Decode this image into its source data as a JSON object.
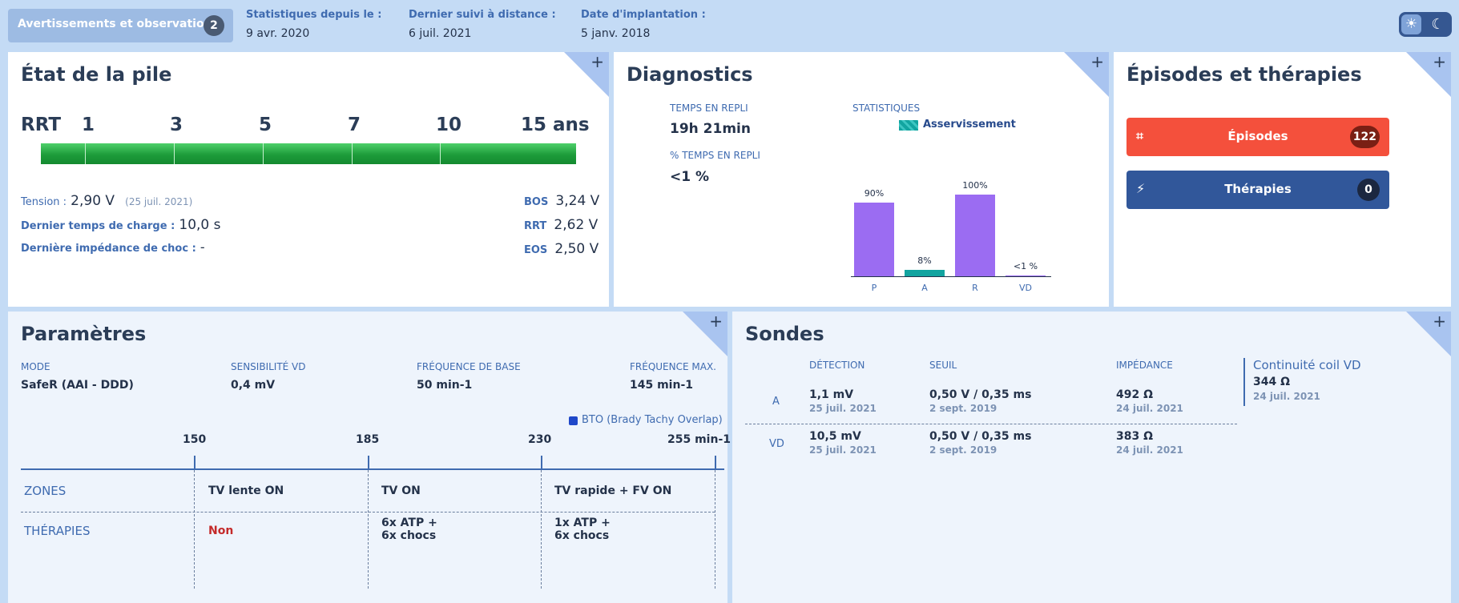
{
  "header": {
    "warnings_label": "Avertissements et observations",
    "warnings_count": "2",
    "stats_label": "Statistiques depuis le :",
    "stats_value": "9 avr. 2020",
    "remote_label": "Dernier suivi à distance :",
    "remote_value": "6 juil. 2021",
    "implant_label": "Date d'implantation :",
    "implant_value": "5 janv. 2018",
    "theme_icons": [
      "sun-icon",
      "moon-icon"
    ]
  },
  "battery": {
    "title": "État de la pile",
    "scale_labels": [
      "RRT",
      "1",
      "3",
      "5",
      "7",
      "10",
      "15 ans"
    ],
    "tension_label": "Tension :",
    "tension_value": "2,90 V",
    "tension_date": "(25 juil. 2021)",
    "charge_label": "Dernier temps de charge :",
    "charge_value": "10,0 s",
    "impedance_label": "Dernière impédance de choc :",
    "impedance_value": "-",
    "bos_label": "BOS",
    "bos_value": "3,24 V",
    "rrt_label": "RRT",
    "rrt_value": "2,62 V",
    "eos_label": "EOS",
    "eos_value": "2,50 V"
  },
  "diagnostics": {
    "title": "Diagnostics",
    "repli_label": "TEMPS EN REPLI",
    "repli_value": "19h 21min",
    "pct_repli_label": "% TEMPS EN REPLI",
    "pct_repli_value": "<1 %",
    "stats_label": "STATISTIQUES",
    "legend": "Asservissement"
  },
  "chart_data": {
    "type": "bar",
    "categories": [
      "P",
      "A",
      "R",
      "VD"
    ],
    "values": [
      90,
      8,
      100,
      0.5
    ],
    "value_labels": [
      "90%",
      "8%",
      "100%",
      "<1 %"
    ],
    "colors": [
      "#9b6cf2",
      "#12a4a0",
      "#9b6cf2",
      "#9b6cf2"
    ],
    "ylim": [
      0,
      100
    ],
    "legend": "Asservissement"
  },
  "episodes": {
    "title": "Épisodes et thérapies",
    "episodes_label": "Épisodes",
    "episodes_count": "122",
    "episodes_color": "#f4503c",
    "therapies_label": "Thérapies",
    "therapies_count": "0",
    "therapies_color": "#31579a"
  },
  "params": {
    "title": "Paramètres",
    "mode_label": "MODE",
    "mode_value": "SafeR (AAI - DDD)",
    "sens_label": "SENSIBILITÉ VD",
    "sens_value": "0,4 mV",
    "base_label": "FRÉQUENCE DE BASE",
    "base_value": "50 min-1",
    "max_label": "FRÉQUENCE MAX.",
    "max_value": "145 min-1",
    "bto_label": "BTO (Brady Tachy Overlap)",
    "scale": [
      "150",
      "185",
      "230",
      "255 min-1"
    ],
    "zones_label": "ZONES",
    "therapies_label": "THÉRAPIES",
    "zones": [
      "TV lente ON",
      "TV ON",
      "TV rapide + FV ON"
    ],
    "therapies": [
      "Non",
      "6x ATP  +\n6x chocs",
      "1x ATP  +\n6x chocs"
    ],
    "therapy_lines": [
      [
        "Non"
      ],
      [
        "6x ATP  +",
        "6x chocs"
      ],
      [
        "1x ATP  +",
        "6x chocs"
      ]
    ]
  },
  "sondes": {
    "title": "Sondes",
    "col_detection": "DÉTECTION",
    "col_seuil": "SEUIL",
    "col_impedance": "IMPÉDANCE",
    "rows": [
      {
        "chamber": "A",
        "detection": "1,1 mV",
        "detection_date": "25 juil. 2021",
        "seuil": "0,50 V / 0,35 ms",
        "seuil_date": "2 sept. 2019",
        "impedance": "492 Ω",
        "impedance_date": "24 juil. 2021"
      },
      {
        "chamber": "VD",
        "detection": "10,5 mV",
        "detection_date": "25 juil. 2021",
        "seuil": "0,50 V / 0,35 ms",
        "seuil_date": "2 sept. 2019",
        "impedance": "383 Ω",
        "impedance_date": "24 juil. 2021"
      }
    ],
    "coil_label": "Continuité coil VD",
    "coil_value": "344 Ω",
    "coil_date": "24 juil. 2021"
  }
}
